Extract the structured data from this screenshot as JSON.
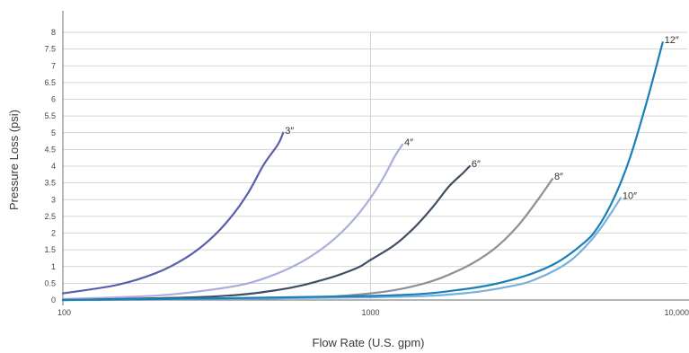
{
  "chart_data": {
    "type": "line",
    "xlabel": "Flow Rate (U.S. gpm)",
    "ylabel": "Pressure Loss (psi)",
    "x_scale": "log",
    "xlim": [
      100,
      10000
    ],
    "ylim": [
      0,
      8
    ],
    "x_ticks": [
      {
        "value": 100,
        "label": "100"
      },
      {
        "value": 1000,
        "label": "1000"
      },
      {
        "value": 10000,
        "label": "10,000"
      }
    ],
    "y_ticks": [
      {
        "value": 0,
        "label": "0"
      },
      {
        "value": 0.5,
        "label": "0.5"
      },
      {
        "value": 1,
        "label": "1"
      },
      {
        "value": 1.5,
        "label": "1.5"
      },
      {
        "value": 2,
        "label": "2"
      },
      {
        "value": 2.5,
        "label": "2.5"
      },
      {
        "value": 3,
        "label": "3"
      },
      {
        "value": 3.5,
        "label": "3.5"
      },
      {
        "value": 4,
        "label": "4"
      },
      {
        "value": 4.5,
        "label": "4.5"
      },
      {
        "value": 5,
        "label": "5"
      },
      {
        "value": 5.5,
        "label": "5.5"
      },
      {
        "value": 6,
        "label": "6"
      },
      {
        "value": 6.5,
        "label": "6.5"
      },
      {
        "value": 7,
        "label": "7"
      },
      {
        "value": 7.5,
        "label": "7.5"
      },
      {
        "value": 8,
        "label": "8"
      }
    ],
    "grid": true,
    "series": [
      {
        "name": "3″",
        "color": "#5a5fa8",
        "x": [
          100,
          150,
          200,
          250,
          300,
          350,
          400,
          450,
          500,
          520
        ],
        "y": [
          0.2,
          0.45,
          0.8,
          1.25,
          1.8,
          2.45,
          3.2,
          4.05,
          4.65,
          5.0
        ]
      },
      {
        "name": "4″",
        "color": "#a9aedb",
        "x": [
          100,
          200,
          300,
          400,
          500,
          600,
          700,
          800,
          900,
          1000,
          1100,
          1200,
          1270
        ],
        "y": [
          0.03,
          0.13,
          0.3,
          0.5,
          0.8,
          1.15,
          1.55,
          2.0,
          2.5,
          3.05,
          3.65,
          4.3,
          4.65
        ]
      },
      {
        "name": "6″",
        "color": "#3f4f63",
        "x": [
          100,
          300,
          500,
          700,
          900,
          1000,
          1200,
          1400,
          1600,
          1800,
          2000,
          2100
        ],
        "y": [
          0.0,
          0.1,
          0.3,
          0.6,
          0.95,
          1.2,
          1.65,
          2.2,
          2.8,
          3.4,
          3.8,
          4.0
        ]
      },
      {
        "name": "8″",
        "color": "#8f8f97",
        "x": [
          100,
          500,
          1000,
          1500,
          2000,
          2500,
          3000,
          3500,
          3900
        ],
        "y": [
          0.0,
          0.05,
          0.2,
          0.5,
          0.95,
          1.5,
          2.2,
          3.0,
          3.62
        ]
      },
      {
        "name": "10″",
        "color": "#7ab1dc",
        "x": [
          100,
          1000,
          2000,
          3000,
          3500,
          4000,
          4500,
          5000,
          5500,
          6000,
          6500
        ],
        "y": [
          0.0,
          0.08,
          0.2,
          0.45,
          0.65,
          0.9,
          1.2,
          1.6,
          2.05,
          2.55,
          3.05
        ]
      },
      {
        "name": "12″",
        "color": "#1b7fb8",
        "x": [
          100,
          1000,
          2000,
          3000,
          4000,
          5000,
          5500,
          6000,
          6500,
          7000,
          7500,
          8000,
          8500,
          8900
        ],
        "y": [
          0.0,
          0.12,
          0.32,
          0.65,
          1.1,
          1.75,
          2.2,
          2.8,
          3.5,
          4.3,
          5.2,
          6.1,
          7.0,
          7.7
        ]
      }
    ]
  }
}
